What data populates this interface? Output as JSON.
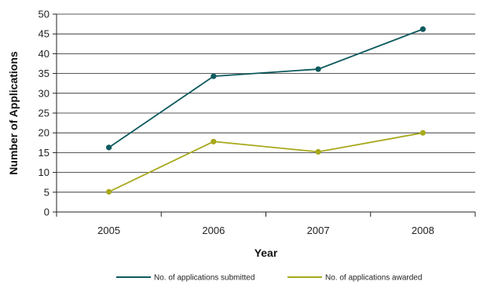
{
  "chart_data": {
    "type": "line",
    "title": "",
    "xlabel": "Year",
    "ylabel": "Number of Applications",
    "categories": [
      "2005",
      "2006",
      "2007",
      "2008"
    ],
    "ylim": [
      0,
      50
    ],
    "yticks": [
      0,
      5,
      10,
      15,
      20,
      25,
      30,
      35,
      40,
      45,
      50
    ],
    "grid": "horizontal",
    "legend_position": "bottom",
    "series": [
      {
        "name": "No. of applications submitted",
        "values": [
          16.3,
          34.3,
          36.1,
          46.2
        ],
        "color": "#0e5a5e"
      },
      {
        "name": "No. of applications awarded",
        "values": [
          5.1,
          17.8,
          15.2,
          20.0
        ],
        "color": "#a8a81c"
      }
    ]
  }
}
